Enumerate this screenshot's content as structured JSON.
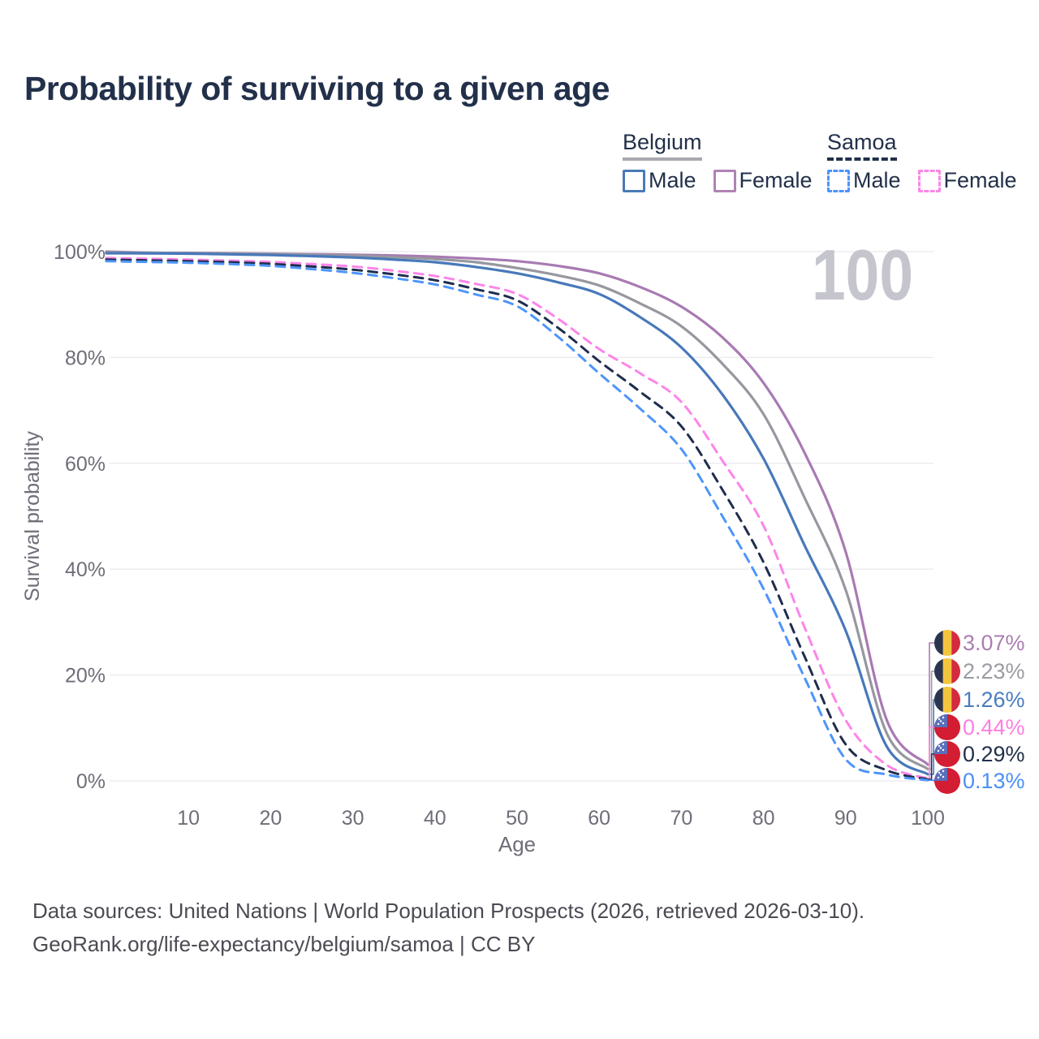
{
  "title": "Probability of surviving to a given age",
  "watermark_age": "100",
  "legend": {
    "groups": [
      {
        "name": "Belgium",
        "line_style": "solid",
        "underline_color": "#a8a8b0",
        "items": [
          {
            "label": "Male",
            "color": "#4a7ab8"
          },
          {
            "label": "Female",
            "color": "#b083b4"
          }
        ]
      },
      {
        "name": "Samoa",
        "line_style": "dashed",
        "underline_color": "#22304a",
        "items": [
          {
            "label": "Male",
            "color": "#4d93fb"
          },
          {
            "label": "Female",
            "color": "#fb87e6"
          }
        ]
      }
    ]
  },
  "chart_data": {
    "type": "line",
    "title": "Probability of surviving to a given age",
    "xlabel": "Age",
    "ylabel": "Survival probability",
    "xlim": [
      0,
      100
    ],
    "ylim": [
      0,
      100
    ],
    "grid": "horizontal-only",
    "x_ticks": [
      10,
      20,
      30,
      40,
      50,
      60,
      70,
      80,
      90,
      100
    ],
    "y_tick_values": [
      0,
      20,
      40,
      60,
      80,
      100
    ],
    "y_tick_labels": [
      "0%",
      "20%",
      "40%",
      "60%",
      "80%",
      "100%"
    ],
    "ages": [
      0,
      5,
      10,
      15,
      20,
      25,
      30,
      35,
      40,
      45,
      50,
      55,
      60,
      65,
      70,
      75,
      80,
      85,
      90,
      95,
      100
    ],
    "series": [
      {
        "id": "belgium-female",
        "country": "Belgium",
        "sex": "Female",
        "color": "#a87ab3",
        "dash": "solid",
        "flag": "belgium",
        "end_label": "3.07%",
        "end_label_color": "#aa7fb0",
        "values": [
          100,
          99.8,
          99.75,
          99.7,
          99.62,
          99.52,
          99.42,
          99.28,
          99.05,
          98.7,
          98.2,
          97.3,
          95.9,
          93.3,
          89.6,
          83.8,
          75.2,
          62.0,
          43.3,
          11.5,
          3.07
        ]
      },
      {
        "id": "belgium-total",
        "country": "Belgium",
        "sex": "Both",
        "color": "#97979f",
        "dash": "solid",
        "flag": "belgium",
        "end_label": "2.23%",
        "end_label_color": "#9b9ba2",
        "values": [
          99.9,
          99.78,
          99.72,
          99.65,
          99.55,
          99.42,
          99.25,
          98.95,
          98.6,
          98.0,
          96.9,
          95.5,
          93.6,
          90.2,
          85.9,
          78.8,
          69.3,
          53.5,
          36.1,
          9.0,
          2.23
        ]
      },
      {
        "id": "belgium-male",
        "country": "Belgium",
        "sex": "Male",
        "color": "#4878ba",
        "dash": "solid",
        "flag": "belgium",
        "end_label": "1.26%",
        "end_label_color": "#4a7cc1",
        "values": [
          99.7,
          99.68,
          99.62,
          99.5,
          99.35,
          99.15,
          98.9,
          98.5,
          98.0,
          97.1,
          95.9,
          94.2,
          92.0,
          87.6,
          81.9,
          73.0,
          60.9,
          44.5,
          28.4,
          6.5,
          1.26
        ]
      },
      {
        "id": "samoa-female",
        "country": "Samoa",
        "sex": "Female",
        "color": "#fc85e9",
        "dash": "dashed",
        "flag": "samoa",
        "end_label": "0.44%",
        "end_label_color": "#fc7fe1",
        "values": [
          98.8,
          98.65,
          98.5,
          98.3,
          98.05,
          97.65,
          97.2,
          96.4,
          95.4,
          93.9,
          92.0,
          87.3,
          81.6,
          77.0,
          71.6,
          60.5,
          48.2,
          29.0,
          11.5,
          3.0,
          0.44
        ]
      },
      {
        "id": "samoa-total",
        "country": "Samoa",
        "sex": "Both",
        "color": "#1f2d4d",
        "dash": "dashed",
        "flag": "samoa",
        "end_label": "0.29%",
        "end_label_color": "#22304a",
        "values": [
          98.5,
          98.35,
          98.2,
          98.0,
          97.68,
          97.2,
          96.6,
          95.7,
          94.6,
          92.9,
          90.8,
          85.6,
          79.3,
          73.5,
          67.0,
          55.0,
          41.3,
          23.5,
          6.9,
          2.0,
          0.29
        ]
      },
      {
        "id": "samoa-male",
        "country": "Samoa",
        "sex": "Male",
        "color": "#4e95fa",
        "dash": "dashed",
        "flag": "samoa",
        "end_label": "0.13%",
        "end_label_color": "#4b90f5",
        "values": [
          98.2,
          98.05,
          97.9,
          97.65,
          97.3,
          96.7,
          96.0,
          95.0,
          93.8,
          91.9,
          89.7,
          83.9,
          77.0,
          70.3,
          62.7,
          50.0,
          36.3,
          19.5,
          4.1,
          1.2,
          0.13
        ]
      }
    ]
  },
  "flags": {
    "belgium": {
      "stripes": [
        "#2c3550",
        "#f3c53e",
        "#d32b3f"
      ]
    },
    "samoa": {
      "field": "#d21d32",
      "canton": "#5a6fbb",
      "stars": "#ffffff"
    }
  },
  "footer": {
    "line1": "Data sources: United Nations | World Population Prospects (2026, retrieved 2026-03-10).",
    "line2": "GeoRank.org/life-expectancy/belgium/samoa | CC BY"
  }
}
